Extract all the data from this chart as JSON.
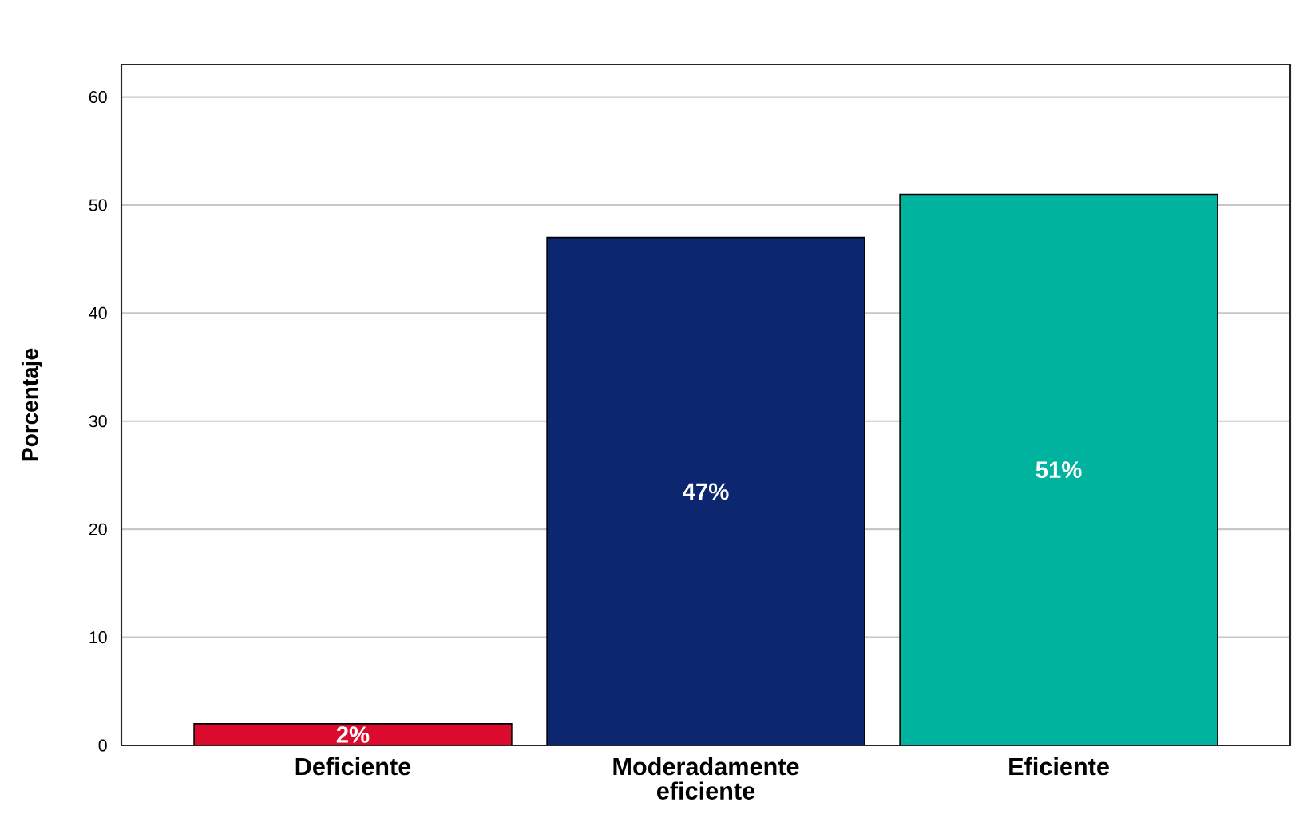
{
  "chart_data": {
    "type": "bar",
    "categories": [
      "Deficiente",
      "Moderadamente eficiente",
      "Eficiente"
    ],
    "values": [
      2,
      47,
      51
    ],
    "colors": [
      "#dc0a2d",
      "#0c2770",
      "#00b39f"
    ],
    "value_labels": [
      "2%",
      "47%",
      "51%"
    ],
    "ylabel": "Porcentaje",
    "ylim": [
      0,
      63
    ],
    "yticks": [
      0,
      10,
      20,
      30,
      40,
      50,
      60
    ],
    "grid": "y"
  }
}
